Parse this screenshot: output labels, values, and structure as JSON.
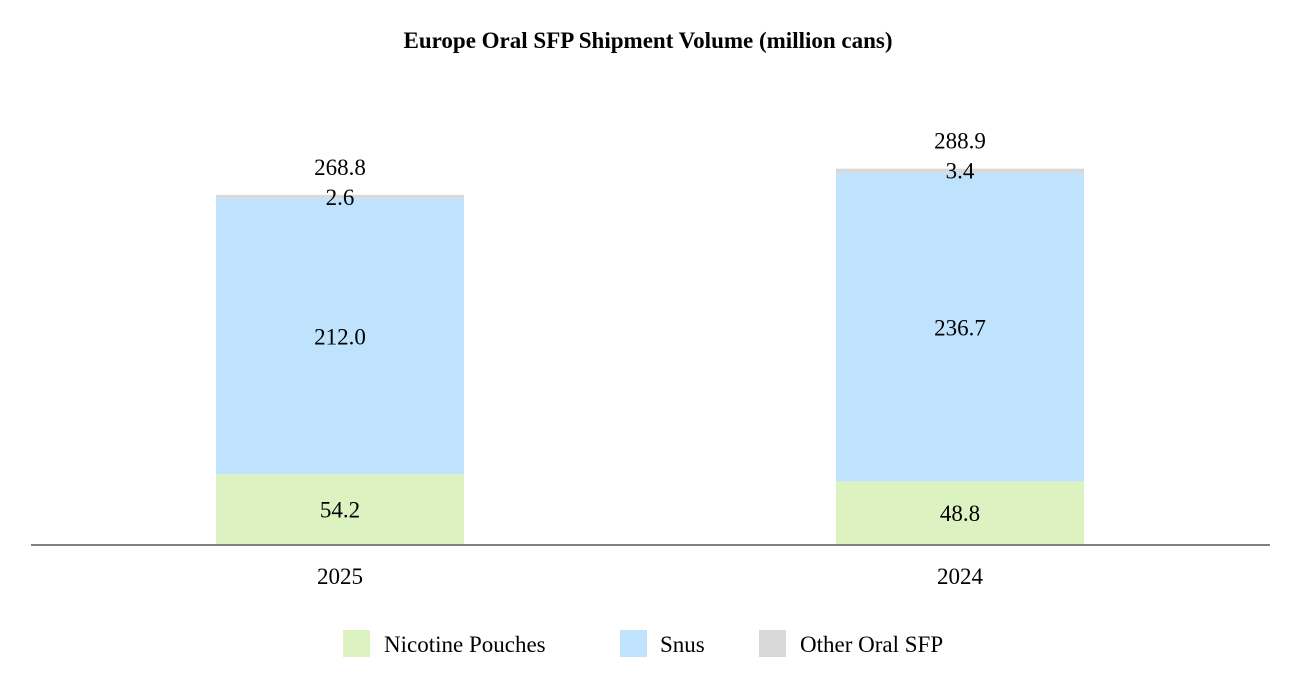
{
  "chart_data": {
    "type": "bar",
    "stacked": true,
    "title": "Europe Oral SFP Shipment Volume (million cans)",
    "xlabel": "",
    "ylabel": "",
    "categories": [
      "2025",
      "2024"
    ],
    "series": [
      {
        "name": "Nicotine Pouches",
        "values": [
          54.2,
          48.8
        ],
        "labels": [
          "54.2",
          "48.8"
        ],
        "color": "#dcf2c0"
      },
      {
        "name": "Snus",
        "values": [
          212.0,
          236.7
        ],
        "labels": [
          "212.0",
          "236.7"
        ],
        "color": "#bfe2fd"
      },
      {
        "name": "Other Oral SFP",
        "values": [
          2.6,
          3.4
        ],
        "labels": [
          "2.6",
          "3.4"
        ],
        "color": "#d9d9d9"
      }
    ],
    "totals": [
      "268.8",
      "288.9"
    ],
    "ylim": [
      0,
      380
    ],
    "grid": false,
    "legend_position": "bottom",
    "axis_color": "#808080"
  }
}
